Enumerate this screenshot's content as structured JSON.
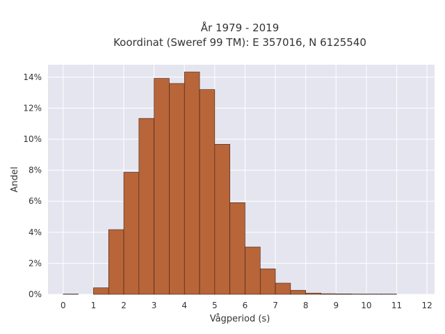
{
  "chart_data": {
    "type": "bar",
    "title_lines": [
      "År 1979 - 2019",
      "Koordinat (Sweref 99 TM): E 357016, N 6125540"
    ],
    "xlabel": "Vågperiod (s)",
    "ylabel": "Andel",
    "bin_width": 0.5,
    "x_bin_starts": [
      0,
      0.5,
      1,
      1.5,
      2,
      2.5,
      3,
      3.5,
      4,
      4.5,
      5,
      5.5,
      6,
      6.5,
      7,
      7.5,
      8,
      8.5,
      9,
      9.5,
      10,
      10.5,
      11
    ],
    "values": [
      0.02,
      0.0,
      0.42,
      4.17,
      7.87,
      11.34,
      13.92,
      13.59,
      14.33,
      13.2,
      9.67,
      5.91,
      3.05,
      1.64,
      0.72,
      0.26,
      0.08,
      0.04,
      0.03,
      0.02,
      0.02,
      0.02,
      0.0
    ],
    "xlim": [
      -0.5,
      12.25
    ],
    "ylim": [
      0,
      14.8
    ],
    "x_ticks": [
      "0",
      "1",
      "2",
      "3",
      "4",
      "5",
      "6",
      "7",
      "8",
      "9",
      "10",
      "11",
      "12"
    ],
    "y_ticks": [
      "0%",
      "2%",
      "4%",
      "6%",
      "8%",
      "10%",
      "12%",
      "14%"
    ],
    "grid": true,
    "colors": {
      "bar_fill": "#b8653a",
      "bar_stroke": "#3a2010",
      "plot_bg": "#e5e5ef",
      "grid": "#ffffff"
    }
  }
}
